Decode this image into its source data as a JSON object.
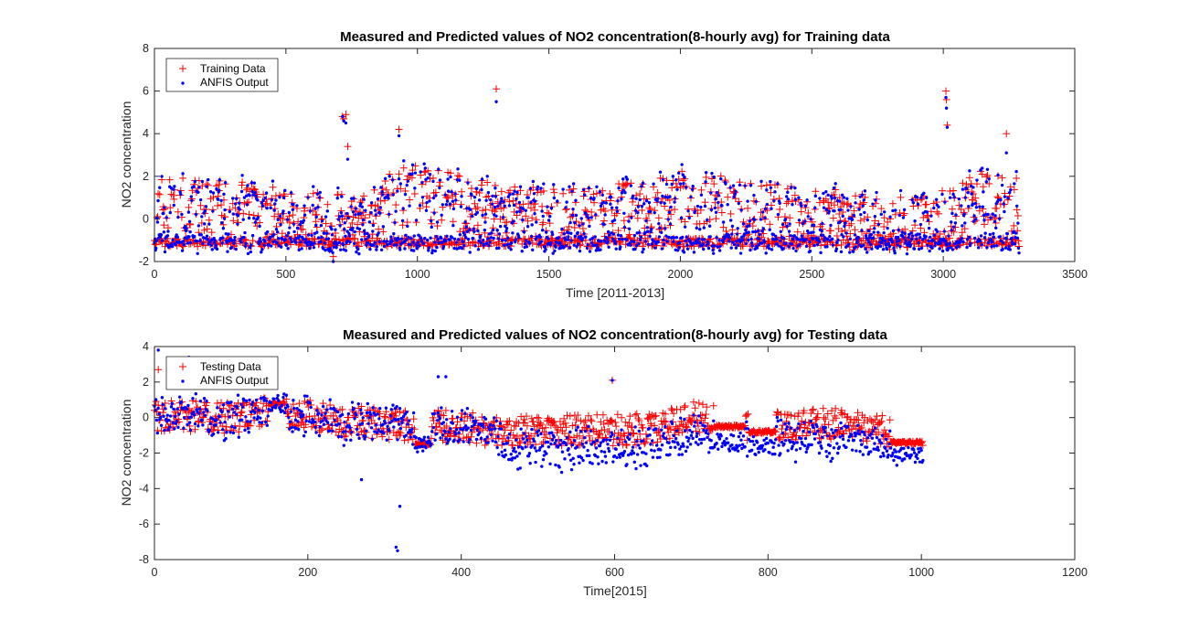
{
  "figure": {
    "background": "#ffffff",
    "measured_color": "#ff0000",
    "predicted_color": "#0000ff"
  },
  "chart_data": [
    {
      "type": "scatter",
      "title": "Measured and Predicted values of NO2 concentration(8-hourly avg) for Training data",
      "xlabel": "Time [2011-2013]",
      "ylabel": "NO2 concentration",
      "xlim": [
        0,
        3500
      ],
      "ylim": [
        -2,
        8
      ],
      "xticks": [
        0,
        500,
        1000,
        1500,
        2000,
        2500,
        3000,
        3500
      ],
      "yticks": [
        -2,
        0,
        2,
        4,
        6,
        8
      ],
      "grid": false,
      "legend_position": "top-left",
      "series": [
        {
          "name": "Training Data",
          "marker": "plus",
          "color": "#ff0000"
        },
        {
          "name": "ANFIS Output",
          "marker": "dot",
          "color": "#0000ff"
        }
      ],
      "sample_count": 3290,
      "baseline": [
        [
          0,
          -0.2
        ],
        [
          50,
          0.5
        ],
        [
          100,
          0.2
        ],
        [
          200,
          0.1
        ],
        [
          300,
          0
        ],
        [
          400,
          -0.2
        ],
        [
          500,
          -0.3
        ],
        [
          600,
          -0.5
        ],
        [
          680,
          -0.8
        ],
        [
          720,
          -0.4
        ],
        [
          800,
          -0.2
        ],
        [
          900,
          0.6
        ],
        [
          1000,
          0.7
        ],
        [
          1100,
          0.4
        ],
        [
          1200,
          0.2
        ],
        [
          1300,
          0
        ],
        [
          1400,
          -0.2
        ],
        [
          1500,
          -0.3
        ],
        [
          1600,
          -0.4
        ],
        [
          1700,
          -0.3
        ],
        [
          1800,
          -0.1
        ],
        [
          1900,
          0
        ],
        [
          2000,
          0.8
        ],
        [
          2100,
          0.5
        ],
        [
          2200,
          0
        ],
        [
          2300,
          -0.1
        ],
        [
          2400,
          -0.2
        ],
        [
          2500,
          -0.2
        ],
        [
          2600,
          -0.4
        ],
        [
          2700,
          -0.6
        ],
        [
          2800,
          -0.6
        ],
        [
          2900,
          -0.5
        ],
        [
          3000,
          -0.3
        ],
        [
          3100,
          0.3
        ],
        [
          3200,
          0.6
        ],
        [
          3280,
          0.1
        ]
      ],
      "annotations": [
        {
          "x": 1300,
          "measured": 6.1,
          "predicted": 5.5
        },
        {
          "x": 3010,
          "measured": 6.0,
          "predicted": 5.7
        },
        {
          "x": 3012,
          "measured": 5.6,
          "predicted": 5.2
        },
        {
          "x": 3015,
          "measured": 4.4,
          "predicted": 4.3
        },
        {
          "x": 715,
          "measured": 4.8,
          "predicted": 4.8
        },
        {
          "x": 720,
          "measured": 4.7,
          "predicted": 4.6
        },
        {
          "x": 728,
          "measured": 4.9,
          "predicted": 4.5
        },
        {
          "x": 735,
          "measured": 3.4,
          "predicted": 2.8
        },
        {
          "x": 930,
          "measured": 4.2,
          "predicted": 3.9
        },
        {
          "x": 3240,
          "measured": 4.0,
          "predicted": 3.1
        },
        {
          "x": 2010,
          "measured": -1.3,
          "predicted": -1.5
        }
      ]
    },
    {
      "type": "scatter",
      "title": "Measured and Predicted values of NO2 concentration(8-hourly avg) for Testing data",
      "xlabel": "Time[2015]",
      "ylabel": "NO2 concentration",
      "xlim": [
        0,
        1200
      ],
      "ylim": [
        -8,
        4
      ],
      "xticks": [
        0,
        200,
        400,
        600,
        800,
        1000,
        1200
      ],
      "yticks": [
        -8,
        -6,
        -4,
        -2,
        0,
        2,
        4
      ],
      "grid": false,
      "legend_position": "top-left",
      "series": [
        {
          "name": "Testing Data",
          "marker": "plus",
          "color": "#ff0000"
        },
        {
          "name": "ANFIS Output",
          "marker": "dot",
          "color": "#0000ff"
        }
      ],
      "sample_count": 1003,
      "baseline": [
        [
          0,
          0
        ],
        [
          50,
          0
        ],
        [
          100,
          -0.1
        ],
        [
          150,
          0.3
        ],
        [
          200,
          0
        ],
        [
          250,
          -0.3
        ],
        [
          300,
          -0.4
        ],
        [
          350,
          -0.6
        ],
        [
          400,
          -0.6
        ],
        [
          450,
          -0.9
        ],
        [
          500,
          -0.9
        ],
        [
          550,
          -0.8
        ],
        [
          600,
          -0.8
        ],
        [
          650,
          -0.7
        ],
        [
          700,
          0
        ],
        [
          750,
          -0.4
        ],
        [
          800,
          -0.6
        ],
        [
          850,
          -0.4
        ],
        [
          900,
          -0.4
        ],
        [
          950,
          -0.8
        ],
        [
          1003,
          -1.3
        ]
      ],
      "prediction_offset": [
        [
          0,
          0
        ],
        [
          440,
          0
        ],
        [
          460,
          -1.0
        ],
        [
          600,
          -1.1
        ],
        [
          700,
          -0.9
        ],
        [
          800,
          -0.8
        ],
        [
          1003,
          -0.8
        ]
      ],
      "plateaus": [
        {
          "x0": 150,
          "x1": 170,
          "y": 0.8
        },
        {
          "x0": 340,
          "x1": 360,
          "y": -1.5
        },
        {
          "x0": 730,
          "x1": 770,
          "y": -0.5
        },
        {
          "x0": 775,
          "x1": 810,
          "y": -0.8
        },
        {
          "x0": 960,
          "x1": 1000,
          "y": -1.4
        }
      ],
      "annotations": [
        {
          "x": 597,
          "measured": 2.1,
          "predicted": 2.1
        },
        {
          "x": 317,
          "measured": -1.0,
          "predicted": -7.5
        },
        {
          "x": 315,
          "measured": -1.0,
          "predicted": -7.3
        },
        {
          "x": 320,
          "measured": -1.0,
          "predicted": -5.0
        },
        {
          "x": 270,
          "measured": -0.8,
          "predicted": -3.5
        },
        {
          "x": 370,
          "measured": 0.4,
          "predicted": 2.3
        },
        {
          "x": 380,
          "measured": 0.4,
          "predicted": 2.3
        },
        {
          "x": 5,
          "measured": 2.7,
          "predicted": 3.8
        },
        {
          "x": 45,
          "measured": 0.5,
          "predicted": 3.4
        }
      ]
    }
  ]
}
